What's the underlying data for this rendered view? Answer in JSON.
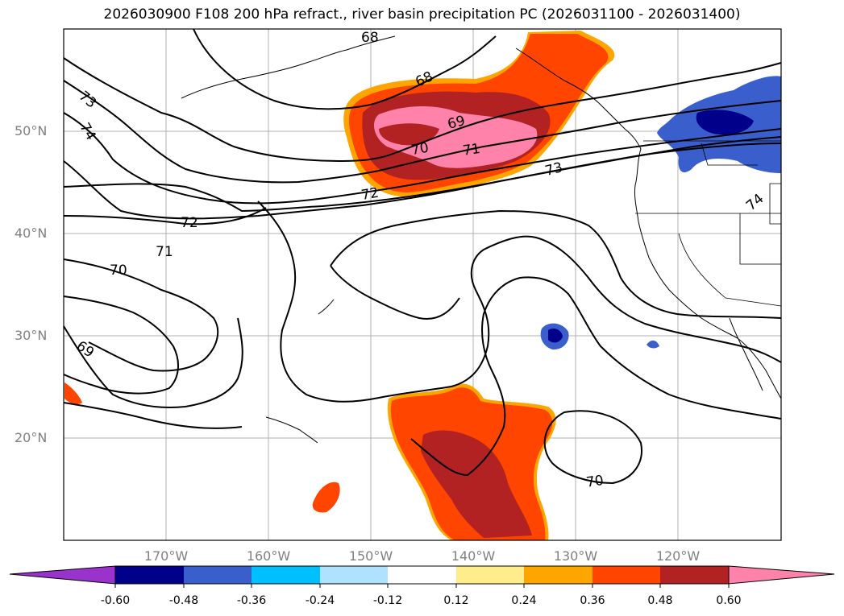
{
  "title": "2026030900 F108 200 hPa refract., river basin precipitation PC (2026031100 - 2026031400)",
  "lat_labels": [
    "50°N",
    "40°N",
    "30°N",
    "20°N"
  ],
  "lon_labels": [
    "170°W",
    "160°W",
    "150°W",
    "140°W",
    "130°W",
    "120°W"
  ],
  "contour_labels": [
    "68",
    "68",
    "69",
    "70",
    "71",
    "72",
    "73",
    "73",
    "74",
    "74",
    "72",
    "71",
    "70",
    "69",
    "70"
  ],
  "colorbar": {
    "ticks": [
      "-0.60",
      "-0.48",
      "-0.36",
      "-0.24",
      "-0.12",
      "0.12",
      "0.24",
      "0.36",
      "0.48",
      "0.60"
    ],
    "colors": [
      "#9933cc",
      "#00008b",
      "#3a5fcd",
      "#00bfff",
      "#b0e2ff",
      "#ffffff",
      "#ffec8b",
      "#ffa500",
      "#ff4500",
      "#b22222",
      "#ff82ab"
    ]
  }
}
